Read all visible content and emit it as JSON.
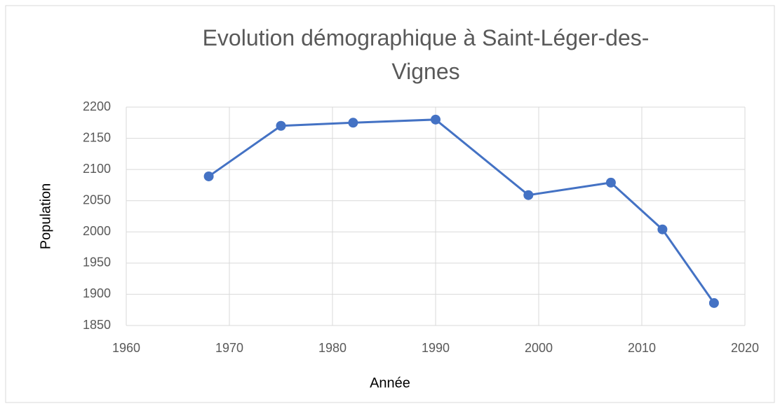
{
  "chart_data": {
    "type": "line",
    "title": "Evolution démographique à Saint-Léger-des-Vignes",
    "xlabel": "Année",
    "ylabel": "Population",
    "x": [
      1968,
      1975,
      1982,
      1990,
      1999,
      2007,
      2012,
      2017
    ],
    "series": [
      {
        "name": "Population",
        "color": "#4472c4",
        "values": [
          2089,
          2170,
          2175,
          2180,
          2059,
          2079,
          2004,
          1886
        ]
      }
    ],
    "xlim": [
      1960,
      2020
    ],
    "xticks": [
      1960,
      1970,
      1980,
      1990,
      2000,
      2010,
      2020
    ],
    "ylim": [
      1850,
      2200
    ],
    "yticks": [
      1850,
      1900,
      1950,
      2000,
      2050,
      2100,
      2150,
      2200
    ],
    "grid": true
  }
}
